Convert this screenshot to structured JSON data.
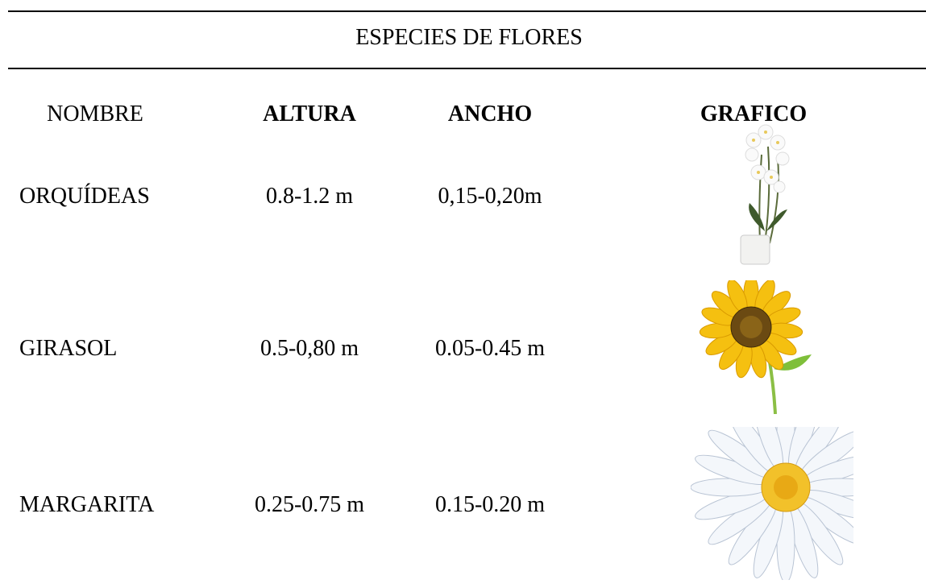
{
  "table": {
    "title": "ESPECIES DE FLORES",
    "header": [
      "NOMBRE",
      "ALTURA",
      "ANCHO",
      "GRAFICO"
    ],
    "rows": [
      [
        "ORQUÍDEAS",
        "0.8-1.2 m",
        "0,15-0,20m"
      ],
      [
        "GIRASOL",
        "0.5-0,80 m",
        "0.05-0.45 m"
      ],
      [
        "MARGARITA",
        "0.25-0.75 m",
        "0.15-0.20 m"
      ]
    ]
  }
}
